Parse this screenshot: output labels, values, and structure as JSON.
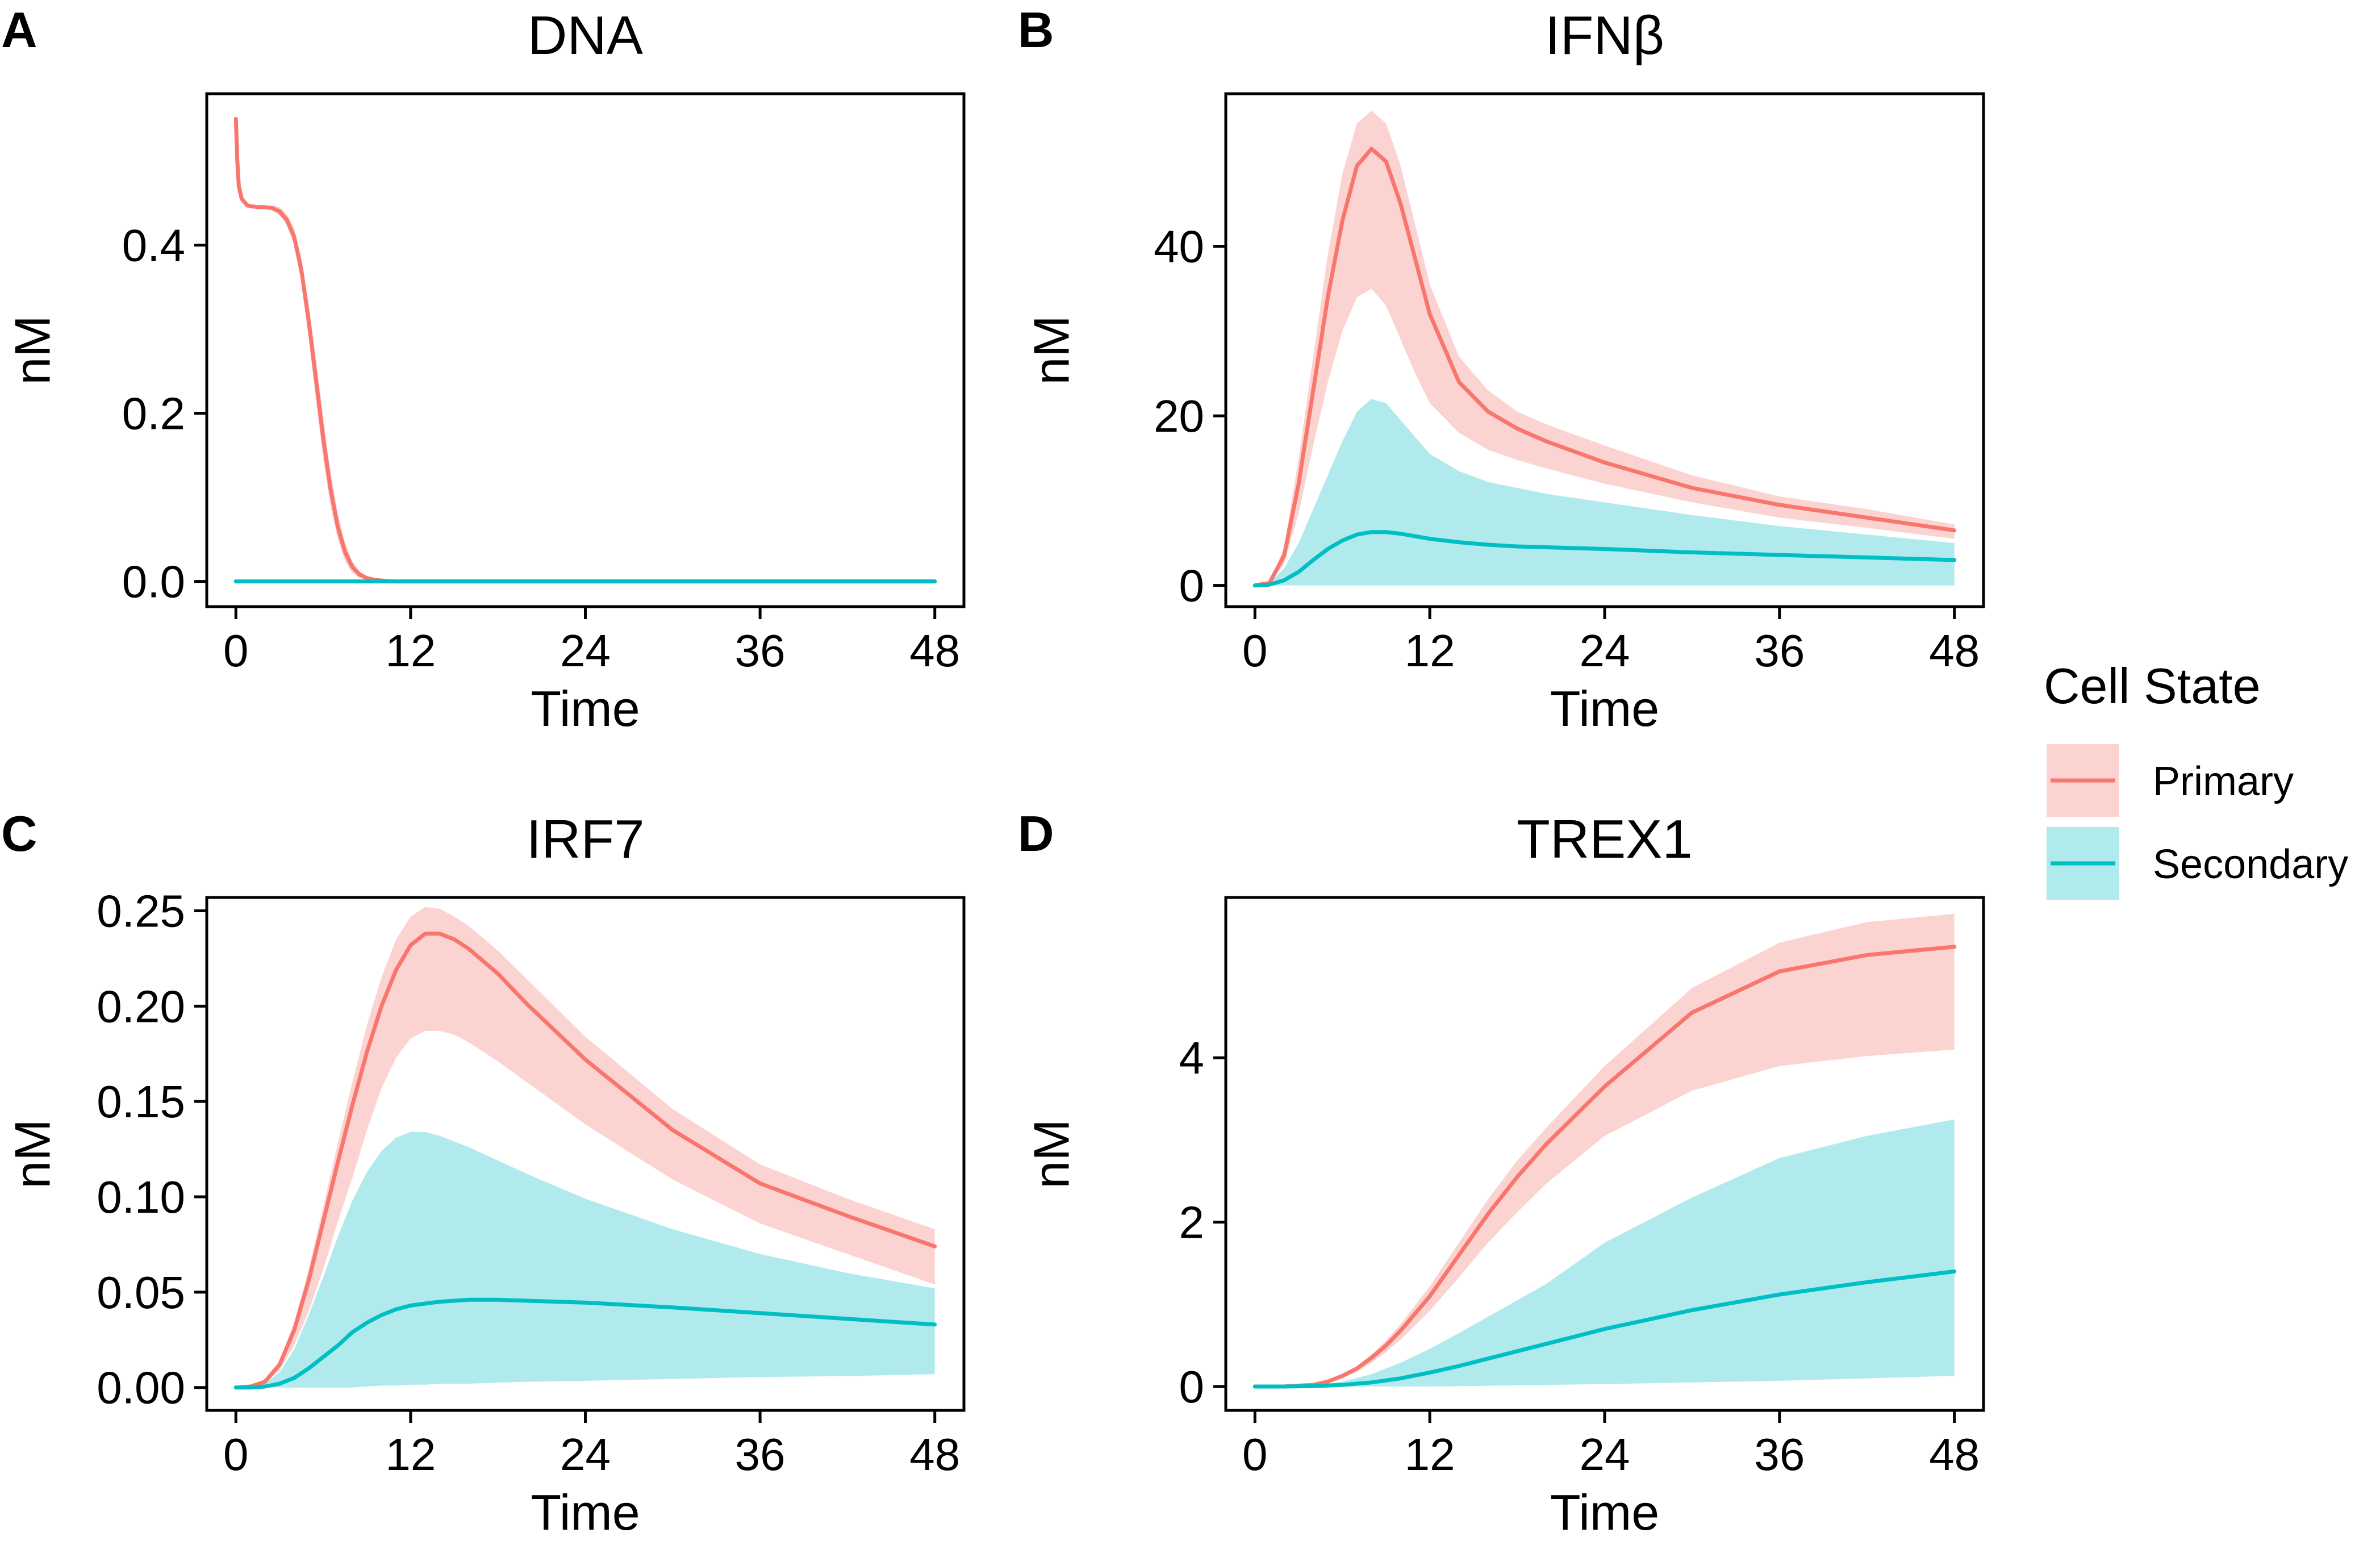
{
  "legend": {
    "title": "Cell State",
    "entries": [
      {
        "label": "Primary",
        "line_color": "#F8766D",
        "band_color": "#FBD3D1"
      },
      {
        "label": "Secondary",
        "line_color": "#00BFC4",
        "band_color": "#B1EAEC"
      }
    ]
  },
  "chart_data": [
    {
      "type": "line",
      "panel": "A",
      "title": "DNA",
      "xlabel": "Time",
      "ylabel": "nM",
      "xlim": [
        -2,
        50
      ],
      "ylim": [
        -0.03,
        0.58
      ],
      "xticks": [
        0,
        12,
        24,
        36,
        48
      ],
      "yticks": [
        0.0,
        0.2,
        0.4
      ],
      "ytick_labels": [
        "0.0",
        "0.2",
        "0.4"
      ],
      "series": [
        {
          "name": "Primary",
          "color": "#F8766D",
          "x": [
            0,
            0.1,
            0.2,
            0.4,
            0.8,
            1.5,
            2,
            2.5,
            3,
            3.5,
            4,
            4.5,
            5,
            5.5,
            6,
            6.5,
            7,
            7.5,
            8,
            8.5,
            9,
            9.5,
            10,
            11,
            12,
            24,
            36,
            48
          ],
          "y": [
            0.55,
            0.5,
            0.47,
            0.455,
            0.447,
            0.445,
            0.445,
            0.444,
            0.44,
            0.43,
            0.41,
            0.37,
            0.31,
            0.24,
            0.17,
            0.11,
            0.065,
            0.035,
            0.017,
            0.008,
            0.004,
            0.002,
            0.001,
            0,
            0,
            0,
            0,
            0
          ],
          "upper": [
            0.55,
            0.5,
            0.47,
            0.456,
            0.449,
            0.447,
            0.447,
            0.447,
            0.445,
            0.437,
            0.42,
            0.385,
            0.33,
            0.265,
            0.195,
            0.13,
            0.08,
            0.046,
            0.024,
            0.012,
            0.006,
            0.003,
            0.001,
            0,
            0,
            0,
            0,
            0
          ],
          "lower": [
            0.55,
            0.5,
            0.47,
            0.454,
            0.445,
            0.443,
            0.443,
            0.441,
            0.435,
            0.423,
            0.4,
            0.355,
            0.29,
            0.215,
            0.145,
            0.09,
            0.05,
            0.024,
            0.01,
            0.004,
            0.002,
            0.001,
            0,
            0,
            0,
            0,
            0,
            0
          ]
        },
        {
          "name": "Secondary",
          "color": "#00BFC4",
          "x": [
            0,
            48
          ],
          "y": [
            0,
            0
          ],
          "upper": [
            0,
            0
          ],
          "lower": [
            0,
            0
          ]
        }
      ]
    },
    {
      "type": "line",
      "panel": "B",
      "title": "IFNβ",
      "xlabel": "Time",
      "ylabel": "nM",
      "xlim": [
        -2,
        50
      ],
      "ylim": [
        -2.5,
        58
      ],
      "xticks": [
        0,
        12,
        24,
        36,
        48
      ],
      "yticks": [
        0,
        20,
        40
      ],
      "ytick_labels": [
        "0",
        "20",
        "40"
      ],
      "series": [
        {
          "name": "Primary",
          "color": "#F8766D",
          "x": [
            0,
            1,
            2,
            3,
            4,
            5,
            6,
            7,
            8,
            9,
            10,
            11,
            12,
            14,
            16,
            18,
            20,
            24,
            30,
            36,
            42,
            48
          ],
          "y": [
            0,
            0.3,
            3.5,
            12,
            23,
            34,
            43,
            49.5,
            51.5,
            50,
            45,
            38.5,
            32,
            24,
            20.5,
            18.5,
            17,
            14.5,
            11.5,
            9.5,
            8,
            6.5
          ],
          "upper": [
            0,
            0.4,
            4.5,
            15,
            27,
            39,
            48.5,
            54.5,
            56,
            54.5,
            49.5,
            42.5,
            35.5,
            27,
            23,
            20.5,
            19,
            16.5,
            13,
            10.5,
            9,
            7.2
          ],
          "lower": [
            0,
            0.2,
            2.5,
            8.5,
            16.5,
            24,
            30,
            34,
            35,
            33,
            29,
            25,
            21.5,
            18,
            16,
            14.8,
            13.8,
            12,
            9.8,
            8,
            6.8,
            5.5
          ]
        },
        {
          "name": "Secondary",
          "color": "#00BFC4",
          "x": [
            0,
            1,
            2,
            3,
            4,
            5,
            6,
            7,
            8,
            9,
            10,
            11,
            12,
            14,
            16,
            18,
            20,
            24,
            30,
            36,
            42,
            48
          ],
          "y": [
            0,
            0.1,
            0.6,
            1.6,
            3,
            4.3,
            5.3,
            6,
            6.3,
            6.3,
            6.1,
            5.8,
            5.5,
            5.1,
            4.8,
            4.6,
            4.5,
            4.3,
            3.9,
            3.6,
            3.3,
            3
          ],
          "upper": [
            0,
            0.3,
            2,
            5,
            9,
            13,
            17,
            20.5,
            22,
            21.5,
            19.5,
            17.5,
            15.5,
            13.5,
            12.2,
            11.5,
            10.8,
            9.8,
            8.3,
            7,
            6,
            5
          ],
          "lower": [
            0,
            0,
            0,
            0,
            0,
            0,
            0,
            0,
            0,
            0,
            0,
            0,
            0,
            0,
            0,
            0,
            0,
            0,
            0,
            0,
            0,
            0
          ]
        }
      ]
    },
    {
      "type": "line",
      "panel": "C",
      "title": "IRF7",
      "xlabel": "Time",
      "ylabel": "nM",
      "xlim": [
        -2,
        50
      ],
      "ylim": [
        -0.012,
        0.257
      ],
      "xticks": [
        0,
        12,
        24,
        36,
        48
      ],
      "yticks": [
        0.0,
        0.05,
        0.1,
        0.15,
        0.2,
        0.25
      ],
      "ytick_labels": [
        "0.00",
        "0.05",
        "0.10",
        "0.15",
        "0.20",
        "0.25"
      ],
      "series": [
        {
          "name": "Primary",
          "color": "#F8766D",
          "x": [
            0,
            1,
            2,
            3,
            4,
            5,
            6,
            7,
            8,
            9,
            10,
            11,
            12,
            13,
            14,
            15,
            16,
            18,
            20,
            24,
            30,
            36,
            42,
            48
          ],
          "y": [
            0,
            0.0005,
            0.003,
            0.012,
            0.03,
            0.056,
            0.087,
            0.118,
            0.148,
            0.176,
            0.2,
            0.219,
            0.232,
            0.238,
            0.238,
            0.235,
            0.23,
            0.217,
            0.201,
            0.172,
            0.135,
            0.107,
            0.09,
            0.074
          ],
          "upper": [
            0,
            0.0006,
            0.0035,
            0.014,
            0.034,
            0.062,
            0.095,
            0.128,
            0.16,
            0.19,
            0.215,
            0.235,
            0.247,
            0.252,
            0.251,
            0.247,
            0.242,
            0.229,
            0.214,
            0.184,
            0.146,
            0.117,
            0.099,
            0.083
          ],
          "lower": [
            0,
            0.0004,
            0.0025,
            0.009,
            0.022,
            0.04,
            0.062,
            0.087,
            0.11,
            0.135,
            0.157,
            0.173,
            0.183,
            0.187,
            0.187,
            0.185,
            0.181,
            0.171,
            0.16,
            0.138,
            0.109,
            0.086,
            0.07,
            0.054
          ]
        },
        {
          "name": "Secondary",
          "color": "#00BFC4",
          "x": [
            0,
            1,
            2,
            3,
            4,
            5,
            6,
            7,
            8,
            9,
            10,
            11,
            12,
            13,
            14,
            15,
            16,
            18,
            20,
            24,
            30,
            36,
            42,
            48
          ],
          "y": [
            0,
            0,
            0.0005,
            0.002,
            0.005,
            0.01,
            0.016,
            0.022,
            0.029,
            0.034,
            0.038,
            0.041,
            0.043,
            0.044,
            0.045,
            0.0455,
            0.046,
            0.046,
            0.0455,
            0.0445,
            0.042,
            0.039,
            0.036,
            0.033
          ],
          "upper": [
            0,
            0,
            0.002,
            0.008,
            0.02,
            0.038,
            0.058,
            0.079,
            0.098,
            0.113,
            0.124,
            0.131,
            0.134,
            0.134,
            0.132,
            0.129,
            0.126,
            0.119,
            0.112,
            0.099,
            0.083,
            0.07,
            0.06,
            0.052
          ],
          "lower": [
            0,
            0,
            0,
            0,
            0,
            0,
            0,
            0,
            0,
            0.0005,
            0.001,
            0.001,
            0.0015,
            0.0015,
            0.002,
            0.002,
            0.002,
            0.0025,
            0.003,
            0.0035,
            0.0045,
            0.0055,
            0.006,
            0.007
          ]
        }
      ]
    },
    {
      "type": "line",
      "panel": "D",
      "title": "TREX1",
      "xlabel": "Time",
      "ylabel": "nM",
      "xlim": [
        -2,
        50
      ],
      "ylim": [
        -0.29,
        5.95
      ],
      "xticks": [
        0,
        12,
        24,
        36,
        48
      ],
      "yticks": [
        0,
        2,
        4
      ],
      "ytick_labels": [
        "0",
        "2",
        "4"
      ],
      "series": [
        {
          "name": "Primary",
          "color": "#F8766D",
          "x": [
            0,
            2,
            4,
            5,
            6,
            7,
            8,
            9,
            10,
            12,
            14,
            16,
            18,
            20,
            24,
            30,
            36,
            42,
            48
          ],
          "y": [
            0,
            0.001,
            0.02,
            0.06,
            0.13,
            0.22,
            0.35,
            0.5,
            0.68,
            1.1,
            1.6,
            2.1,
            2.55,
            2.95,
            3.65,
            4.55,
            5.05,
            5.25,
            5.35
          ],
          "upper": [
            0,
            0.001,
            0.022,
            0.07,
            0.15,
            0.25,
            0.39,
            0.56,
            0.76,
            1.22,
            1.75,
            2.28,
            2.75,
            3.15,
            3.9,
            4.85,
            5.4,
            5.65,
            5.75
          ],
          "lower": [
            0,
            0.001,
            0.016,
            0.05,
            0.1,
            0.18,
            0.29,
            0.42,
            0.57,
            0.92,
            1.33,
            1.75,
            2.12,
            2.47,
            3.05,
            3.6,
            3.9,
            4.02,
            4.1
          ]
        },
        {
          "name": "Secondary",
          "color": "#00BFC4",
          "x": [
            0,
            2,
            4,
            6,
            8,
            10,
            12,
            14,
            16,
            18,
            20,
            24,
            30,
            36,
            42,
            48
          ],
          "y": [
            0,
            0,
            0.005,
            0.02,
            0.05,
            0.1,
            0.17,
            0.25,
            0.34,
            0.43,
            0.52,
            0.7,
            0.93,
            1.12,
            1.27,
            1.4
          ],
          "upper": [
            0,
            0.001,
            0.015,
            0.06,
            0.15,
            0.29,
            0.46,
            0.65,
            0.85,
            1.05,
            1.25,
            1.75,
            2.3,
            2.78,
            3.05,
            3.25
          ],
          "lower": [
            0,
            0,
            0,
            0,
            0,
            0,
            0,
            0.005,
            0.01,
            0.015,
            0.02,
            0.03,
            0.05,
            0.07,
            0.1,
            0.13
          ]
        }
      ]
    }
  ]
}
